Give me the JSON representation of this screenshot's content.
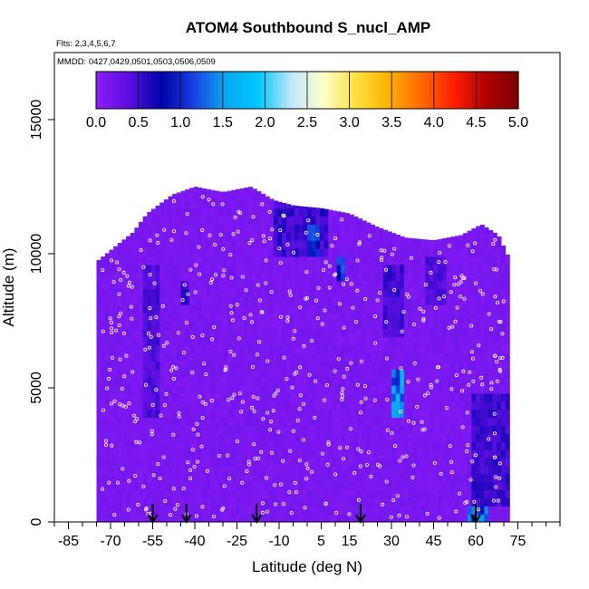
{
  "chart_data": {
    "type": "heatmap",
    "title": "ATOM4 Southbound S_nucl_AMP",
    "subtitle_flights": "Flts: 2,3,4,5,6,7",
    "subtitle_dates": "MMDD: 0427,0429,0501,0503,0506,0509",
    "xlabel": "Latitude (deg N)",
    "ylabel": "Altitude (m)",
    "xlim": [
      -90,
      90
    ],
    "ylim": [
      0,
      17500
    ],
    "x_ticks": [
      -85,
      -70,
      -55,
      -40,
      -25,
      -10,
      5,
      15,
      30,
      45,
      60,
      75
    ],
    "x_tick_labels": [
      "-85",
      "-70",
      "-55",
      "-40",
      "-25",
      "-10",
      "5",
      "15",
      "30",
      "45",
      "60",
      "75"
    ],
    "y_ticks": [
      0,
      5000,
      10000,
      15000
    ],
    "y_tick_labels": [
      "0",
      "5000",
      "10000",
      "15000"
    ],
    "colorbar": {
      "range": [
        0,
        5
      ],
      "ticks": [
        "0.0",
        "0.5",
        "1.0",
        "1.5",
        "2.0",
        "2.5",
        "3.0",
        "3.5",
        "4.0",
        "4.5",
        "5.0"
      ],
      "colors": [
        "#8b1cf7",
        "#5a10e0",
        "#0000a8",
        "#1a3fe0",
        "#0aa8f0",
        "#00c8ff",
        "#bfe6ff",
        "#ffffcc",
        "#ffe040",
        "#ffb000",
        "#ff6a00",
        "#ff2000",
        "#b00000",
        "#7a0000"
      ]
    },
    "domain_lat": [
      -75,
      72
    ],
    "domain_alt_top": [
      [
        -75,
        9700
      ],
      [
        -68,
        10300
      ],
      [
        -62,
        10800
      ],
      [
        -57,
        11500
      ],
      [
        -48,
        12200
      ],
      [
        -40,
        12500
      ],
      [
        -30,
        12300
      ],
      [
        -20,
        12500
      ],
      [
        -12,
        12000
      ],
      [
        -5,
        11800
      ],
      [
        5,
        11700
      ],
      [
        15,
        11500
      ],
      [
        25,
        11000
      ],
      [
        35,
        10600
      ],
      [
        45,
        10500
      ],
      [
        55,
        10700
      ],
      [
        62,
        11100
      ],
      [
        68,
        10700
      ],
      [
        72,
        9800
      ]
    ],
    "enhanced_regions": [
      {
        "lat": [
          -58,
          -52
        ],
        "alt": [
          4000,
          9500
        ],
        "value": 0.5
      },
      {
        "lat": [
          -45,
          -42
        ],
        "alt": [
          8000,
          9000
        ],
        "value": 0.6
      },
      {
        "lat": [
          -12,
          8
        ],
        "alt": [
          10000,
          12200
        ],
        "value": 0.6
      },
      {
        "lat": [
          0,
          4
        ],
        "alt": [
          10000,
          11000
        ],
        "value": 1.2
      },
      {
        "lat": [
          10,
          14
        ],
        "alt": [
          9000,
          9800
        ],
        "value": 1.3
      },
      {
        "lat": [
          27,
          35
        ],
        "alt": [
          7000,
          9500
        ],
        "value": 0.6
      },
      {
        "lat": [
          30,
          34
        ],
        "alt": [
          3800,
          5600
        ],
        "value": 1.6
      },
      {
        "lat": [
          32,
          35
        ],
        "alt": [
          3800,
          4600
        ],
        "value": 2.0
      },
      {
        "lat": [
          42,
          50
        ],
        "alt": [
          8000,
          9800
        ],
        "value": 0.5
      },
      {
        "lat": [
          58,
          72
        ],
        "alt": [
          700,
          4800
        ],
        "value": 0.6
      },
      {
        "lat": [
          57,
          64
        ],
        "alt": [
          100,
          500
        ],
        "value": 1.4
      }
    ],
    "profile_markers_lat": [
      -55,
      -43,
      -18,
      19,
      60
    ],
    "grid": false,
    "legend": "top (horizontal colorbar)"
  }
}
